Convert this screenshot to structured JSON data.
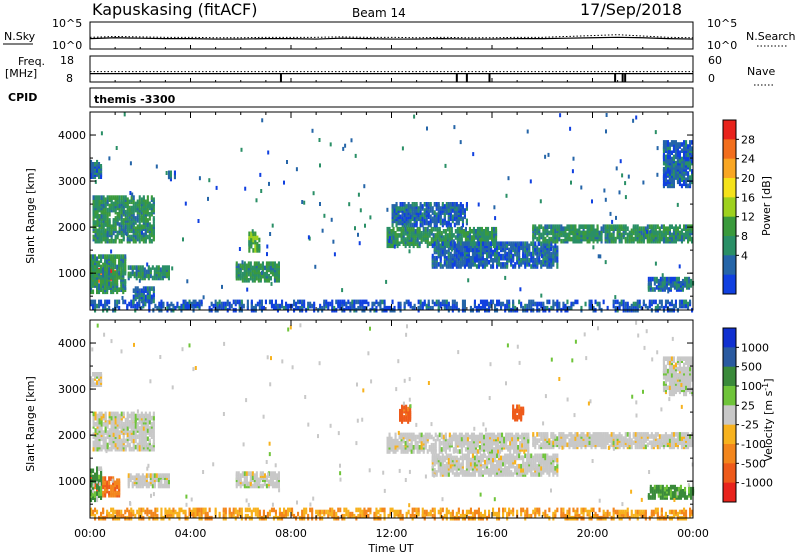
{
  "header": {
    "title": "Kapuskasing (fitACF)",
    "beam": "Beam 14",
    "date": "17/Sep/2018"
  },
  "chart_data": [
    {
      "type": "line",
      "name": "sky-noise-panel",
      "left_label": "N.Sky",
      "right_label": "N.Search",
      "left_ticks": [
        "10^5",
        "10^0"
      ],
      "right_ticks": [
        "10^5",
        "10^0"
      ],
      "ylim_log10": [
        0,
        5
      ],
      "x_hours": [
        0,
        1,
        2,
        3,
        4,
        5,
        6,
        7,
        8,
        9,
        10,
        11,
        12,
        13,
        14,
        15,
        16,
        17,
        18,
        19,
        20,
        21,
        22,
        23,
        24
      ],
      "sky_log10": [
        1.9,
        2.1,
        2.0,
        1.9,
        1.9,
        1.8,
        1.8,
        1.9,
        1.9,
        1.8,
        2.0,
        1.9,
        1.8,
        1.8,
        1.9,
        1.8,
        1.8,
        1.9,
        1.9,
        2.0,
        2.1,
        2.2,
        2.1,
        1.9,
        1.8
      ],
      "search_log10": [
        2.2,
        2.4,
        2.3,
        2.2,
        2.2,
        2.1,
        2.1,
        2.2,
        2.2,
        2.2,
        2.3,
        2.2,
        2.2,
        2.1,
        2.2,
        2.1,
        2.1,
        2.2,
        2.2,
        2.4,
        2.6,
        2.8,
        2.5,
        2.2,
        2.1
      ]
    },
    {
      "type": "line",
      "name": "frequency-panel",
      "left_label": "Freq.",
      "left_unit": "[MHz]",
      "right_label": "Nave",
      "left_ticks": [
        "18",
        "8"
      ],
      "right_ticks": [
        "60",
        "0"
      ],
      "freq_ylim": [
        8,
        18
      ],
      "nave_ylim": [
        0,
        60
      ],
      "freq_MHz": 10.9,
      "nave": 23,
      "dropouts_hours": [
        7.6,
        14.6,
        15.0,
        15.9,
        20.9,
        21.2,
        21.3
      ]
    },
    {
      "type": "text",
      "name": "cpid-panel",
      "label": "CPID",
      "program": "themis -3300"
    },
    {
      "type": "heatmap",
      "name": "power-panel",
      "ylabel": "Slant Range [km]",
      "y_ticks": [
        1000,
        2000,
        3000,
        4000
      ],
      "ylim": [
        200,
        4500
      ],
      "xlim_hours": [
        0,
        24
      ],
      "colorbar_label": "Power [dB]",
      "colorbar_ticks": [
        "28",
        "24",
        "20",
        "16",
        "12",
        "8",
        "4"
      ],
      "colorbar_colors": [
        "#e8231c",
        "#f26e1d",
        "#f9a623",
        "#f5e21a",
        "#9ed11e",
        "#3a9a3c",
        "#2a8f66",
        "#2565a8",
        "#1040e0"
      ],
      "regions": [
        {
          "t0": 0.0,
          "t1": 1.0,
          "r0": 800,
          "r1": 1100,
          "v": 28
        },
        {
          "t0": 0.0,
          "t1": 1.4,
          "r0": 600,
          "r1": 1400,
          "v": 10
        },
        {
          "t0": 0.1,
          "t1": 2.6,
          "r0": 1700,
          "r1": 2700,
          "v": 10
        },
        {
          "t0": 0.0,
          "t1": 0.5,
          "r0": 3100,
          "r1": 3450,
          "v": 5
        },
        {
          "t0": 1.5,
          "t1": 3.2,
          "r0": 900,
          "r1": 1150,
          "v": 9
        },
        {
          "t0": 1.7,
          "t1": 2.6,
          "r0": 400,
          "r1": 700,
          "v": 6
        },
        {
          "t0": 3.1,
          "t1": 3.4,
          "r0": 3050,
          "r1": 3250,
          "v": 5
        },
        {
          "t0": 5.8,
          "t1": 7.6,
          "r0": 850,
          "r1": 1250,
          "v": 10
        },
        {
          "t0": 6.3,
          "t1": 6.8,
          "r0": 1500,
          "r1": 1900,
          "v": 12
        },
        {
          "t0": 11.8,
          "t1": 16.2,
          "r0": 1600,
          "r1": 2000,
          "v": 10
        },
        {
          "t0": 13.6,
          "t1": 18.6,
          "r0": 1150,
          "r1": 1700,
          "v": 5
        },
        {
          "t0": 12.0,
          "t1": 15.0,
          "r0": 2050,
          "r1": 2550,
          "v": 5
        },
        {
          "t0": 17.6,
          "t1": 24.0,
          "r0": 1700,
          "r1": 2050,
          "v": 10
        },
        {
          "t0": 22.2,
          "t1": 24.0,
          "r0": 650,
          "r1": 900,
          "v": 6
        },
        {
          "t0": 22.8,
          "t1": 24.0,
          "r0": 2900,
          "r1": 3900,
          "v": 5
        },
        {
          "t0": 0.0,
          "t1": 24.0,
          "r0": 200,
          "r1": 420,
          "v": 4
        }
      ]
    },
    {
      "type": "heatmap",
      "name": "velocity-panel",
      "ylabel": "Slant Range [km]",
      "y_ticks": [
        1000,
        2000,
        3000,
        4000
      ],
      "ylim": [
        200,
        4500
      ],
      "xlim_hours": [
        0,
        24
      ],
      "xlabel": "Time UT",
      "x_ticks": [
        "00:00",
        "04:00",
        "08:00",
        "12:00",
        "16:00",
        "20:00",
        "00:00"
      ],
      "colorbar_label": "Velocity [m s^-1]",
      "colorbar_unit_main": "Velocity [m s",
      "colorbar_unit_exp": "-1",
      "colorbar_unit_close": "]",
      "colorbar_ticks": [
        "1000",
        "500",
        "100",
        "25",
        "-25",
        "-100",
        "-500",
        "-1000"
      ],
      "colorbar_colors": [
        "#1030d0",
        "#2a5aa0",
        "#3a8a3a",
        "#6fc43a",
        "#c8c8c8",
        "#f7b21e",
        "#f3861c",
        "#ee5a1a",
        "#e8231c"
      ],
      "regions": [
        {
          "t0": 0.0,
          "t1": 1.2,
          "r0": 700,
          "r1": 1100,
          "v": -300
        },
        {
          "t0": 0.0,
          "t1": 0.5,
          "r0": 600,
          "r1": 1300,
          "v": 120
        },
        {
          "t0": 0.1,
          "t1": 2.6,
          "r0": 1700,
          "r1": 2500,
          "v": 0
        },
        {
          "t0": 0.0,
          "t1": 0.5,
          "r0": 3100,
          "r1": 3350,
          "v": 0
        },
        {
          "t0": 1.5,
          "t1": 3.2,
          "r0": 900,
          "r1": 1150,
          "v": 0
        },
        {
          "t0": 5.8,
          "t1": 7.6,
          "r0": 900,
          "r1": 1200,
          "v": 0
        },
        {
          "t0": 11.8,
          "t1": 17.5,
          "r0": 1650,
          "r1": 2050,
          "v": 0
        },
        {
          "t0": 13.6,
          "t1": 18.6,
          "r0": 1150,
          "r1": 1600,
          "v": 0
        },
        {
          "t0": 17.6,
          "t1": 24.0,
          "r0": 1750,
          "r1": 2050,
          "v": 0
        },
        {
          "t0": 22.2,
          "t1": 24.0,
          "r0": 650,
          "r1": 900,
          "v": 80
        },
        {
          "t0": 22.8,
          "t1": 24.0,
          "r0": 2900,
          "r1": 3700,
          "v": 0
        },
        {
          "t0": 12.3,
          "t1": 12.8,
          "r0": 2300,
          "r1": 2650,
          "v": -400
        },
        {
          "t0": 16.8,
          "t1": 17.3,
          "r0": 2350,
          "r1": 2650,
          "v": -400
        },
        {
          "t0": 0.0,
          "t1": 24.0,
          "r0": 200,
          "r1": 420,
          "v": -60
        }
      ]
    }
  ]
}
